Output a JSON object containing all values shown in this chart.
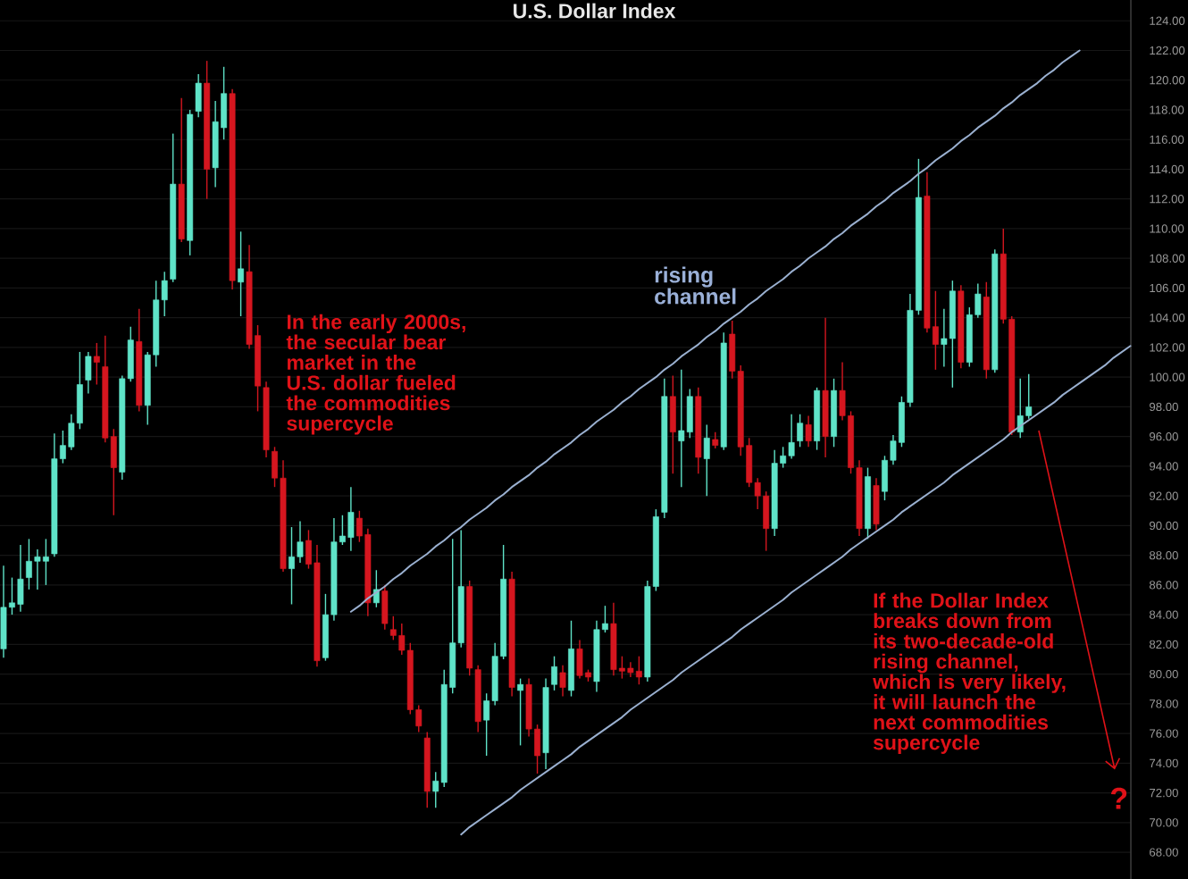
{
  "chart_data": {
    "type": "candlestick",
    "title": "U.S. Dollar Index",
    "annotations": [
      "In the early 2000s, the secular bear market in the U.S. dollar fueled the commodities supercycle",
      "rising channel",
      "If the Dollar Index breaks down from its two-decade-old rising channel, which is very likely, it will launch the next commodities supercycle",
      "?"
    ],
    "categories": [
      null,
      null,
      null,
      null,
      null,
      null,
      null,
      null,
      null,
      null,
      null,
      null,
      null,
      null,
      null,
      null,
      null,
      null,
      null,
      null,
      null,
      null,
      null,
      null,
      null,
      null,
      null,
      null,
      null,
      null,
      null,
      null,
      null,
      null,
      null,
      null,
      null,
      null,
      null,
      null,
      null,
      null,
      null,
      null,
      null,
      null,
      null,
      null,
      null,
      null,
      null,
      null,
      null,
      null,
      null,
      null,
      null,
      null,
      null,
      null,
      null,
      null,
      null,
      null,
      null,
      null,
      null,
      null,
      null,
      null,
      null,
      null,
      null,
      null,
      null,
      null,
      null,
      null,
      null,
      null,
      null,
      null,
      null,
      null,
      null,
      null,
      null,
      null,
      null,
      null,
      null,
      null,
      null,
      null,
      null,
      null,
      null,
      null,
      null,
      null,
      null,
      null,
      null,
      null,
      null,
      null,
      null,
      null,
      null,
      null,
      null,
      null,
      null,
      null,
      null,
      null,
      null,
      null,
      null,
      null,
      null,
      null,
      null,
      null,
      null,
      null,
      null,
      null,
      null,
      null,
      null,
      null,
      null,
      null
    ],
    "ohlc": [
      [
        81.7,
        87.3,
        81.1,
        84.5
      ],
      [
        84.5,
        86.5,
        84.0,
        84.8
      ],
      [
        84.7,
        88.7,
        84.2,
        86.4
      ],
      [
        86.5,
        89.1,
        85.7,
        87.6
      ],
      [
        87.6,
        88.4,
        85.7,
        87.9
      ],
      [
        87.6,
        89.1,
        86.0,
        87.9
      ],
      [
        88.1,
        96.2,
        87.9,
        94.5
      ],
      [
        94.5,
        96.4,
        94.2,
        95.4
      ],
      [
        95.3,
        97.5,
        95.1,
        96.9
      ],
      [
        96.9,
        101.7,
        96.5,
        99.5
      ],
      [
        99.8,
        101.7,
        98.9,
        101.4
      ],
      [
        101.4,
        102.3,
        99.5,
        101.0
      ],
      [
        100.7,
        102.8,
        95.6,
        95.9
      ],
      [
        96.0,
        96.5,
        90.7,
        93.9
      ],
      [
        93.6,
        100.1,
        93.1,
        99.9
      ],
      [
        99.9,
        103.4,
        99.7,
        102.5
      ],
      [
        102.4,
        104.6,
        97.7,
        98.1
      ],
      [
        98.1,
        101.7,
        96.8,
        101.5
      ],
      [
        101.5,
        106.5,
        100.7,
        105.2
      ],
      [
        105.2,
        107.1,
        104.1,
        106.5
      ],
      [
        106.6,
        116.4,
        106.4,
        113.0
      ],
      [
        113.0,
        118.8,
        109.1,
        109.3
      ],
      [
        109.2,
        118.0,
        108.2,
        117.7
      ],
      [
        117.9,
        120.4,
        117.5,
        119.8
      ],
      [
        119.8,
        121.3,
        112.0,
        114.0
      ],
      [
        114.1,
        118.6,
        112.8,
        117.2
      ],
      [
        116.8,
        120.9,
        116.0,
        119.1
      ],
      [
        119.1,
        119.4,
        105.9,
        106.5
      ],
      [
        106.4,
        109.8,
        104.1,
        107.3
      ],
      [
        107.1,
        108.9,
        101.9,
        102.2
      ],
      [
        102.8,
        103.5,
        97.7,
        99.4
      ],
      [
        99.3,
        99.7,
        94.6,
        95.1
      ],
      [
        95.0,
        95.3,
        92.6,
        93.2
      ],
      [
        93.2,
        94.4,
        86.9,
        87.1
      ],
      [
        87.1,
        89.9,
        84.7,
        87.9
      ],
      [
        87.9,
        90.3,
        87.5,
        88.9
      ],
      [
        89.0,
        89.7,
        87.1,
        87.4
      ],
      [
        87.5,
        88.7,
        80.5,
        80.9
      ],
      [
        81.1,
        85.4,
        80.9,
        84.0
      ],
      [
        84.0,
        90.5,
        83.6,
        88.9
      ],
      [
        88.9,
        90.7,
        88.7,
        89.3
      ],
      [
        89.2,
        92.6,
        88.3,
        90.9
      ],
      [
        90.5,
        91.0,
        88.9,
        89.3
      ],
      [
        89.4,
        89.8,
        83.9,
        84.8
      ],
      [
        84.8,
        87.0,
        84.5,
        85.7
      ],
      [
        85.6,
        86.0,
        83.0,
        83.4
      ],
      [
        83.0,
        83.9,
        82.3,
        82.6
      ],
      [
        82.6,
        83.4,
        81.3,
        81.6
      ],
      [
        81.6,
        82.1,
        77.3,
        77.6
      ],
      [
        77.6,
        77.9,
        76.1,
        76.5
      ],
      [
        75.7,
        76.1,
        71.0,
        72.1
      ],
      [
        72.1,
        73.4,
        71.0,
        72.8
      ],
      [
        72.7,
        80.3,
        72.4,
        79.3
      ],
      [
        79.1,
        89.1,
        78.7,
        82.1
      ],
      [
        82.1,
        89.7,
        81.8,
        85.9
      ],
      [
        85.9,
        86.3,
        79.9,
        80.4
      ],
      [
        80.3,
        80.6,
        76.1,
        76.8
      ],
      [
        76.9,
        78.7,
        74.5,
        78.2
      ],
      [
        78.2,
        82.1,
        77.9,
        81.2
      ],
      [
        81.2,
        88.7,
        81.0,
        86.4
      ],
      [
        86.4,
        86.9,
        78.5,
        79.1
      ],
      [
        78.9,
        79.7,
        75.2,
        79.3
      ],
      [
        79.3,
        79.7,
        75.8,
        76.3
      ],
      [
        76.3,
        76.6,
        73.3,
        74.5
      ],
      [
        74.7,
        79.7,
        73.6,
        79.1
      ],
      [
        79.3,
        81.2,
        78.9,
        80.5
      ],
      [
        80.1,
        80.6,
        78.5,
        79.1
      ],
      [
        78.9,
        83.6,
        78.5,
        81.7
      ],
      [
        81.7,
        82.3,
        79.7,
        79.9
      ],
      [
        80.1,
        80.3,
        79.5,
        79.8
      ],
      [
        79.5,
        83.6,
        78.8,
        83.0
      ],
      [
        83.0,
        84.6,
        82.8,
        83.4
      ],
      [
        83.4,
        84.8,
        79.9,
        80.3
      ],
      [
        80.4,
        81.2,
        79.7,
        80.2
      ],
      [
        80.4,
        80.8,
        79.8,
        80.1
      ],
      [
        80.2,
        81.2,
        79.3,
        79.8
      ],
      [
        79.8,
        86.3,
        79.5,
        85.9
      ],
      [
        85.9,
        91.1,
        85.6,
        90.6
      ],
      [
        90.9,
        99.9,
        90.5,
        98.7
      ],
      [
        98.7,
        100.1,
        93.5,
        96.3
      ],
      [
        95.7,
        100.5,
        92.6,
        96.4
      ],
      [
        96.3,
        99.2,
        95.9,
        98.7
      ],
      [
        98.7,
        99.3,
        93.5,
        94.6
      ],
      [
        94.5,
        96.8,
        92.0,
        95.9
      ],
      [
        95.8,
        96.3,
        95.2,
        95.4
      ],
      [
        95.3,
        103.0,
        95.1,
        102.3
      ],
      [
        102.9,
        103.8,
        99.9,
        100.4
      ],
      [
        100.4,
        100.8,
        94.7,
        95.3
      ],
      [
        95.4,
        95.9,
        92.6,
        92.9
      ],
      [
        92.9,
        93.2,
        91.1,
        92.0
      ],
      [
        92.0,
        92.3,
        88.3,
        89.8
      ],
      [
        89.8,
        95.1,
        89.3,
        94.2
      ],
      [
        94.2,
        95.3,
        93.9,
        94.7
      ],
      [
        94.7,
        97.5,
        94.5,
        95.6
      ],
      [
        95.7,
        97.5,
        95.3,
        96.9
      ],
      [
        96.8,
        97.4,
        95.3,
        95.7
      ],
      [
        95.7,
        99.3,
        95.1,
        99.1
      ],
      [
        99.1,
        104.0,
        94.6,
        96.0
      ],
      [
        96.0,
        99.9,
        95.3,
        99.1
      ],
      [
        99.1,
        101.0,
        97.1,
        97.4
      ],
      [
        97.4,
        97.7,
        93.5,
        93.9
      ],
      [
        93.9,
        94.4,
        89.3,
        89.8
      ],
      [
        89.8,
        93.9,
        89.1,
        93.3
      ],
      [
        92.7,
        93.2,
        89.7,
        90.1
      ],
      [
        92.3,
        94.7,
        91.7,
        94.4
      ],
      [
        94.4,
        96.1,
        94.1,
        95.7
      ],
      [
        95.6,
        98.7,
        95.3,
        98.3
      ],
      [
        98.3,
        105.6,
        98.0,
        104.5
      ],
      [
        104.5,
        114.7,
        104.2,
        112.1
      ],
      [
        112.2,
        113.8,
        103.0,
        103.3
      ],
      [
        103.4,
        105.8,
        100.5,
        102.2
      ],
      [
        102.2,
        104.6,
        100.7,
        102.6
      ],
      [
        102.6,
        106.5,
        99.3,
        105.8
      ],
      [
        105.8,
        106.2,
        100.6,
        101.0
      ],
      [
        101.0,
        104.7,
        100.7,
        104.2
      ],
      [
        104.2,
        106.3,
        104.0,
        105.6
      ],
      [
        105.4,
        106.4,
        99.9,
        100.5
      ],
      [
        100.5,
        108.6,
        100.3,
        108.3
      ],
      [
        108.3,
        110.0,
        103.6,
        103.9
      ],
      [
        103.9,
        104.1,
        96.1,
        96.3
      ],
      [
        96.3,
        99.9,
        95.9,
        97.4
      ],
      [
        97.4,
        100.2,
        97.2,
        98.0
      ],
      null,
      null,
      null,
      null,
      null,
      null,
      null,
      null,
      null,
      null,
      null,
      null
    ],
    "colors": [
      "#5fe3c8",
      "#5fe3c8",
      "#5fe3c8",
      "#5fe3c8",
      "#5fe3c8",
      "#5fe3c8",
      "#5fe3c8",
      "#5fe3c8",
      "#5fe3c8",
      "#5fe3c8",
      "#5fe3c8",
      "#d5161f",
      "#d5161f",
      "#d5161f",
      "#5fe3c8",
      "#5fe3c8",
      "#d5161f",
      "#5fe3c8",
      "#5fe3c8",
      "#5fe3c8",
      "#5fe3c8",
      "#d5161f",
      "#5fe3c8",
      "#5fe3c8",
      "#d5161f",
      "#5fe3c8",
      "#5fe3c8",
      "#d5161f",
      "#5fe3c8",
      "#d5161f",
      "#d5161f",
      "#d5161f",
      "#d5161f",
      "#d5161f",
      "#5fe3c8",
      "#5fe3c8",
      "#d5161f",
      "#d5161f",
      "#5fe3c8",
      "#5fe3c8",
      "#5fe3c8",
      "#5fe3c8",
      "#d5161f",
      "#d5161f",
      "#5fe3c8",
      "#d5161f",
      "#d5161f",
      "#d5161f",
      "#d5161f",
      "#d5161f",
      "#d5161f",
      "#5fe3c8",
      "#5fe3c8",
      "#5fe3c8",
      "#5fe3c8",
      "#d5161f",
      "#d5161f",
      "#5fe3c8",
      "#5fe3c8",
      "#5fe3c8",
      "#d5161f",
      "#5fe3c8",
      "#d5161f",
      "#d5161f",
      "#5fe3c8",
      "#5fe3c8",
      "#d5161f",
      "#5fe3c8",
      "#d5161f",
      "#d5161f",
      "#5fe3c8",
      "#5fe3c8",
      "#d5161f",
      "#d5161f",
      "#d5161f",
      "#d5161f",
      "#5fe3c8",
      "#5fe3c8",
      "#5fe3c8",
      "#d5161f",
      "#5fe3c8",
      "#5fe3c8",
      "#d5161f",
      "#5fe3c8",
      "#d5161f",
      "#5fe3c8",
      "#d5161f",
      "#d5161f",
      "#d5161f",
      "#d5161f",
      "#d5161f",
      "#5fe3c8",
      "#5fe3c8",
      "#5fe3c8",
      "#5fe3c8",
      "#d5161f",
      "#5fe3c8",
      "#d5161f",
      "#5fe3c8",
      "#d5161f",
      "#d5161f",
      "#d5161f",
      "#5fe3c8",
      "#d5161f",
      "#5fe3c8",
      "#5fe3c8",
      "#5fe3c8",
      "#5fe3c8",
      "#5fe3c8",
      "#d5161f",
      "#d5161f",
      "#5fe3c8",
      "#5fe3c8",
      "#d5161f",
      "#5fe3c8",
      "#5fe3c8",
      "#d5161f",
      "#5fe3c8",
      "#d5161f",
      "#d5161f",
      "#5fe3c8",
      "#5fe3c8",
      null,
      null,
      null,
      null,
      null,
      null,
      null,
      null,
      null,
      null,
      null,
      null
    ],
    "series": [
      {
        "type": "line",
        "color": "#9ab0d0",
        "values": [
          null,
          null,
          null,
          null,
          null,
          null,
          null,
          null,
          null,
          null,
          null,
          null,
          null,
          null,
          null,
          null,
          null,
          null,
          null,
          null,
          null,
          null,
          null,
          null,
          null,
          null,
          null,
          null,
          null,
          null,
          null,
          null,
          null,
          null,
          null,
          null,
          null,
          null,
          null,
          null,
          null,
          84.2,
          84.6,
          85.1,
          85.5,
          85.9,
          86.4,
          86.8,
          87.3,
          87.7,
          88.1,
          88.6,
          89.0,
          89.5,
          89.9,
          90.4,
          90.8,
          91.2,
          91.7,
          92.1,
          92.6,
          93.0,
          93.4,
          93.9,
          94.3,
          94.8,
          95.2,
          95.6,
          96.1,
          96.5,
          97.0,
          97.4,
          97.8,
          98.3,
          98.7,
          99.2,
          99.6,
          100.0,
          100.5,
          100.9,
          101.4,
          101.8,
          102.2,
          102.7,
          103.1,
          103.6,
          104.0,
          104.4,
          104.9,
          105.3,
          105.8,
          106.2,
          106.6,
          107.1,
          107.5,
          108.0,
          108.4,
          108.8,
          109.3,
          109.7,
          110.2,
          110.6,
          111.0,
          111.5,
          111.9,
          112.4,
          112.8,
          113.2,
          113.7,
          114.1,
          114.6,
          115.0,
          115.4,
          115.9,
          116.3,
          116.8,
          117.2,
          117.6,
          118.1,
          118.5,
          119.0,
          119.4,
          119.8,
          120.3,
          120.7,
          121.2,
          121.6,
          122.0,
          null,
          null,
          null,
          null,
          null,
          null
        ]
      },
      {
        "type": "line",
        "color": "#9ab0d0",
        "values": [
          null,
          null,
          null,
          null,
          null,
          null,
          null,
          null,
          null,
          null,
          null,
          null,
          null,
          null,
          null,
          null,
          null,
          null,
          null,
          null,
          null,
          null,
          null,
          null,
          null,
          null,
          null,
          null,
          null,
          null,
          null,
          null,
          null,
          null,
          null,
          null,
          null,
          null,
          null,
          null,
          null,
          null,
          null,
          null,
          null,
          null,
          null,
          null,
          null,
          null,
          null,
          null,
          null,
          null,
          69.2,
          69.7,
          70.1,
          70.5,
          70.9,
          71.3,
          71.7,
          72.2,
          72.6,
          73.0,
          73.4,
          73.8,
          74.2,
          74.6,
          75.1,
          75.5,
          75.9,
          76.3,
          76.7,
          77.1,
          77.6,
          78.0,
          78.4,
          78.8,
          79.2,
          79.6,
          80.1,
          80.5,
          80.9,
          81.3,
          81.7,
          82.1,
          82.5,
          83.0,
          83.4,
          83.8,
          84.2,
          84.6,
          85.0,
          85.5,
          85.9,
          86.3,
          86.7,
          87.1,
          87.5,
          87.9,
          88.4,
          88.8,
          89.2,
          89.6,
          90.0,
          90.4,
          90.9,
          91.3,
          91.7,
          92.1,
          92.5,
          92.9,
          93.4,
          93.8,
          94.2,
          94.6,
          95.0,
          95.4,
          95.8,
          96.3,
          96.7,
          97.1,
          97.5,
          97.9,
          98.3,
          98.8,
          99.2,
          99.6,
          100.0,
          100.4,
          100.8,
          101.3,
          101.7,
          102.1
        ]
      }
    ],
    "ylim": [
      66.2,
      125.4
    ],
    "yticks": [
      {
        "value": 68,
        "label": "68.00"
      },
      {
        "value": 70,
        "label": "70.00"
      },
      {
        "value": 72,
        "label": "72.00"
      },
      {
        "value": 74,
        "label": "74.00"
      },
      {
        "value": 76,
        "label": "76.00"
      },
      {
        "value": 78,
        "label": "78.00"
      },
      {
        "value": 80,
        "label": "80.00"
      },
      {
        "value": 82,
        "label": "82.00"
      },
      {
        "value": 84,
        "label": "84.00"
      },
      {
        "value": 86,
        "label": "86.00"
      },
      {
        "value": 88,
        "label": "88.00"
      },
      {
        "value": 90,
        "label": "90.00"
      },
      {
        "value": 92,
        "label": "92.00"
      },
      {
        "value": 94,
        "label": "94.00"
      },
      {
        "value": 96,
        "label": "96.00"
      },
      {
        "value": 98,
        "label": "98.00"
      },
      {
        "value": 100,
        "label": "100.00"
      },
      {
        "value": 102,
        "label": "102.00"
      },
      {
        "value": 104,
        "label": "104.00"
      },
      {
        "value": 106,
        "label": "106.00"
      },
      {
        "value": 108,
        "label": "108.00"
      },
      {
        "value": 110,
        "label": "110.00"
      },
      {
        "value": 112,
        "label": "112.00"
      },
      {
        "value": 114,
        "label": "114.00"
      },
      {
        "value": 116,
        "label": "116.00"
      },
      {
        "value": 118,
        "label": "118.00"
      },
      {
        "value": 120,
        "label": "120.00"
      },
      {
        "value": 122,
        "label": "122.00"
      },
      {
        "value": 124,
        "label": "124.00"
      }
    ],
    "grid": "y"
  }
}
